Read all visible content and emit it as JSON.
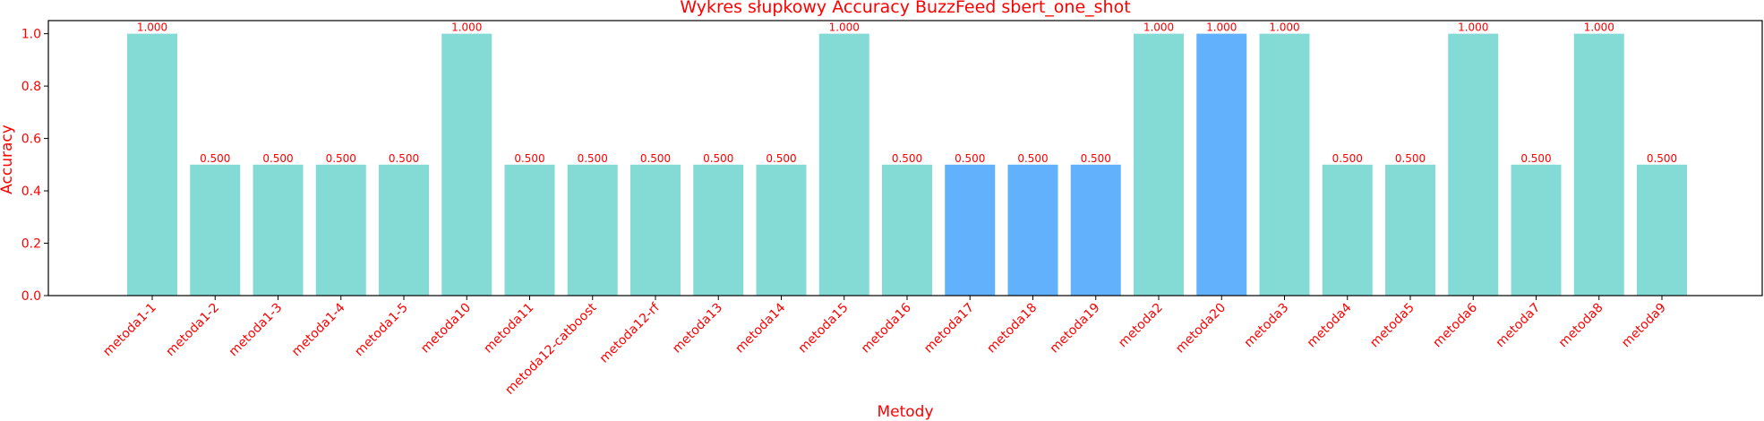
{
  "chart_data": {
    "type": "bar",
    "title": "Wykres słupkowy Accuracy BuzzFeed sbert_one_shot",
    "xlabel": "Metody",
    "ylabel": "Accuracy",
    "ylim": [
      0,
      1.05
    ],
    "yticks": [
      "0.0",
      "0.2",
      "0.4",
      "0.6",
      "0.8",
      "1.0"
    ],
    "grid": false,
    "categories": [
      "metoda1-1",
      "metoda1-2",
      "metoda1-3",
      "metoda1-4",
      "metoda1-5",
      "metoda10",
      "metoda11",
      "metoda12-catboost",
      "metoda12-rf",
      "metoda13",
      "metoda14",
      "metoda15",
      "metoda16",
      "metoda17",
      "metoda18",
      "metoda19",
      "metoda2",
      "metoda20",
      "metoda3",
      "metoda4",
      "metoda5",
      "metoda6",
      "metoda7",
      "metoda8",
      "metoda9"
    ],
    "values": [
      1.0,
      0.5,
      0.5,
      0.5,
      0.5,
      1.0,
      0.5,
      0.5,
      0.5,
      0.5,
      0.5,
      1.0,
      0.5,
      0.5,
      0.5,
      0.5,
      1.0,
      1.0,
      1.0,
      0.5,
      0.5,
      1.0,
      0.5,
      1.0,
      0.5
    ],
    "value_labels": [
      "1.000",
      "0.500",
      "0.500",
      "0.500",
      "0.500",
      "1.000",
      "0.500",
      "0.500",
      "0.500",
      "0.500",
      "0.500",
      "1.000",
      "0.500",
      "0.500",
      "0.500",
      "0.500",
      "1.000",
      "1.000",
      "1.000",
      "0.500",
      "0.500",
      "1.000",
      "0.500",
      "1.000",
      "0.500"
    ],
    "bar_colors": [
      "#84dbd6",
      "#84dbd6",
      "#84dbd6",
      "#84dbd6",
      "#84dbd6",
      "#84dbd6",
      "#84dbd6",
      "#84dbd6",
      "#84dbd6",
      "#84dbd6",
      "#84dbd6",
      "#84dbd6",
      "#84dbd6",
      "#62b1fc",
      "#62b1fc",
      "#62b1fc",
      "#84dbd6",
      "#62b1fc",
      "#84dbd6",
      "#84dbd6",
      "#84dbd6",
      "#84dbd6",
      "#84dbd6",
      "#84dbd6",
      "#84dbd6"
    ],
    "text_color": "#ff0000",
    "axis_color": "#000000"
  }
}
